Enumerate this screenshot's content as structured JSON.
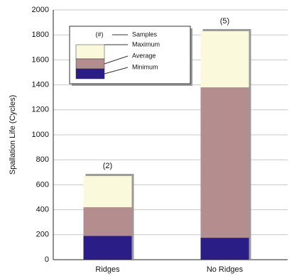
{
  "chart_data": {
    "type": "overlay-bar",
    "ylabel": "Spallation Life (Cycles)",
    "categories": [
      "Ridges",
      "No Ridges"
    ],
    "series": [
      {
        "name": "Maximum",
        "color": "#fbf9dc",
        "values": [
          670,
          1830
        ]
      },
      {
        "name": "Average",
        "color": "#b48e8e",
        "values": [
          420,
          1380
        ]
      },
      {
        "name": "Minimum",
        "color": "#2b1d86",
        "values": [
          190,
          175
        ]
      }
    ],
    "samples": {
      "values": [
        2,
        5
      ],
      "value_labels": [
        "(2)",
        "(5)"
      ]
    },
    "legend": {
      "symbol": "(#)",
      "label": "Samples",
      "position": "upper left"
    },
    "ylim": [
      0,
      2000
    ],
    "yticks": [
      0,
      200,
      400,
      600,
      800,
      1000,
      1200,
      1400,
      1600,
      1800,
      2000
    ],
    "grid": true
  }
}
